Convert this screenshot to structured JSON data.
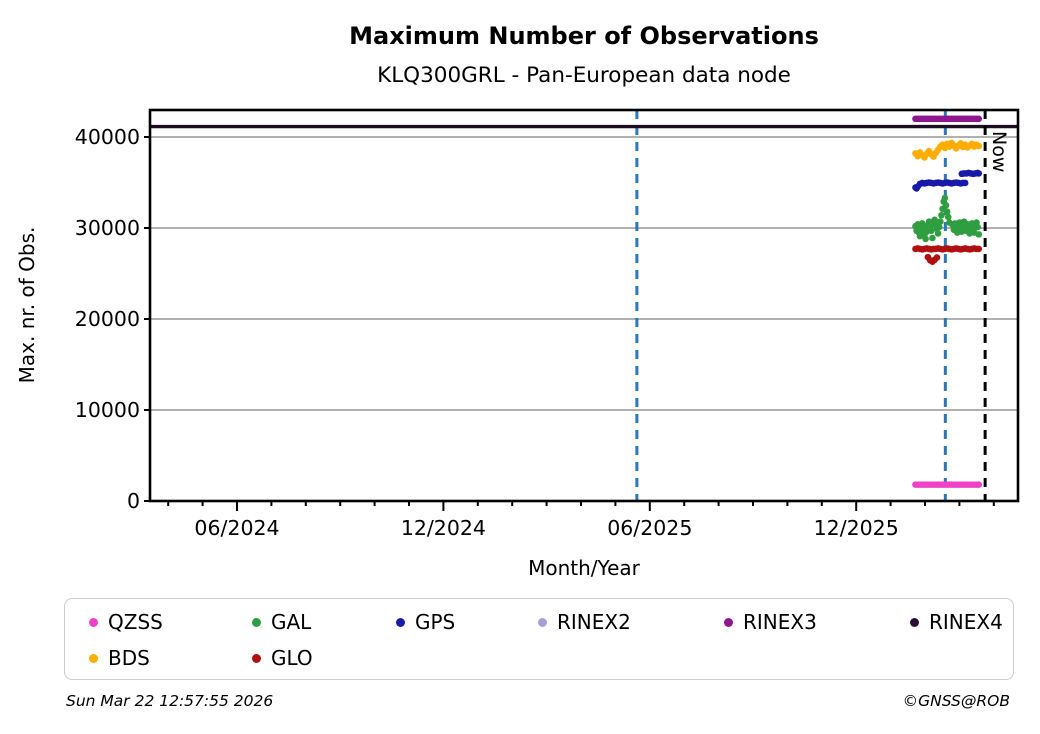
{
  "chart_data": {
    "type": "scatter",
    "title": "Maximum Number of Observations",
    "subtitle": "KLQ300GRL - Pan-European data node",
    "xlabel": "Month/Year",
    "ylabel": "Max. nr. of Obs.",
    "grid": "horizontal",
    "x_axis": {
      "major_tick_labels": [
        "06/2024",
        "12/2024",
        "06/2025",
        "12/2025"
      ],
      "major_tick_month_index": [
        0,
        6,
        12,
        18
      ],
      "minor_tick_month_index_range": [
        -2,
        22
      ],
      "range_dates": [
        "2024-03-16",
        "2026-04-22"
      ]
    },
    "y_axis": {
      "ticks": [
        0,
        10000,
        20000,
        30000,
        40000
      ],
      "range": [
        0,
        42950
      ]
    },
    "annotations": {
      "vlines": [
        {
          "date": "2025-05-20",
          "color": "#2b77b8",
          "style": "dashed"
        },
        {
          "date": "2026-02-19",
          "color": "#2b77b8",
          "style": "dashed"
        }
      ],
      "now_line": {
        "date": "2026-03-22",
        "label": "Now",
        "color": "#000000",
        "style": "dashed"
      },
      "rinex4_hline": {
        "name": "RINEX4",
        "value": 41150,
        "color": "#1c0d22",
        "full_width": true
      }
    },
    "series_epoch": "2026-01-23",
    "series": [
      {
        "name": "RINEX3",
        "color": "#8e168e",
        "points": [
          [
            0,
            42000
          ],
          [
            2,
            42000
          ],
          [
            4,
            42000
          ],
          [
            6,
            42000
          ],
          [
            8,
            42000
          ],
          [
            10,
            42000
          ],
          [
            12,
            42000
          ],
          [
            14,
            42000
          ],
          [
            16,
            42000
          ],
          [
            18,
            42000
          ],
          [
            20,
            42000
          ],
          [
            22,
            42000
          ],
          [
            24,
            42000
          ],
          [
            26,
            42000
          ],
          [
            28,
            42000
          ],
          [
            30,
            42000
          ],
          [
            32,
            42000
          ],
          [
            34,
            42000
          ],
          [
            36,
            42000
          ],
          [
            38,
            42000
          ],
          [
            40,
            42000
          ],
          [
            42,
            42000
          ],
          [
            44,
            42000
          ],
          [
            46,
            42000
          ],
          [
            48,
            42000
          ],
          [
            50,
            42000
          ],
          [
            52,
            42000
          ],
          [
            54,
            42000
          ],
          [
            56,
            42000
          ]
        ]
      },
      {
        "name": "BDS",
        "color": "#ffae00",
        "points": [
          [
            0,
            38200
          ],
          [
            2,
            37900
          ],
          [
            4,
            38300
          ],
          [
            6,
            38000
          ],
          [
            8,
            37750
          ],
          [
            10,
            38150
          ],
          [
            12,
            38450
          ],
          [
            14,
            38100
          ],
          [
            16,
            37850
          ],
          [
            18,
            38250
          ],
          [
            20,
            38600
          ],
          [
            22,
            38950
          ],
          [
            24,
            39150
          ],
          [
            26,
            38800
          ],
          [
            28,
            39250
          ],
          [
            30,
            38950
          ],
          [
            32,
            39350
          ],
          [
            34,
            39050
          ],
          [
            36,
            38750
          ],
          [
            38,
            39050
          ],
          [
            40,
            39300
          ],
          [
            42,
            38900
          ],
          [
            44,
            39150
          ],
          [
            46,
            38850
          ],
          [
            48,
            39050
          ],
          [
            50,
            39250
          ],
          [
            52,
            38950
          ],
          [
            54,
            39150
          ],
          [
            56,
            39000
          ]
        ]
      },
      {
        "name": "GPS",
        "color": "#1a1aa8",
        "points": [
          [
            0,
            34450
          ],
          [
            1,
            34350
          ],
          [
            2,
            34550
          ],
          [
            4,
            34850
          ],
          [
            6,
            34950
          ],
          [
            8,
            34900
          ],
          [
            10,
            34950
          ],
          [
            12,
            35000
          ],
          [
            14,
            34950
          ],
          [
            16,
            34900
          ],
          [
            18,
            34950
          ],
          [
            20,
            35000
          ],
          [
            22,
            34950
          ],
          [
            24,
            34900
          ],
          [
            26,
            34950
          ],
          [
            28,
            35000
          ],
          [
            30,
            34950
          ],
          [
            32,
            34900
          ],
          [
            34,
            34950
          ],
          [
            36,
            35000
          ],
          [
            38,
            34950
          ],
          [
            40,
            34900
          ],
          [
            42,
            34950
          ],
          [
            44,
            34950
          ],
          [
            41,
            35950
          ],
          [
            43,
            36000
          ],
          [
            45,
            36000
          ],
          [
            47,
            36050
          ],
          [
            49,
            36000
          ],
          [
            51,
            35950
          ],
          [
            53,
            36000
          ],
          [
            55,
            36050
          ],
          [
            56,
            36000
          ]
        ]
      },
      {
        "name": "GAL",
        "color": "#2e9e40",
        "points": [
          [
            0,
            30200
          ],
          [
            1,
            29700
          ],
          [
            2,
            30400
          ],
          [
            3,
            29500
          ],
          [
            4,
            29100
          ],
          [
            5,
            29900
          ],
          [
            6,
            30500
          ],
          [
            7,
            30000
          ],
          [
            8,
            29300
          ],
          [
            9,
            28800
          ],
          [
            10,
            29600
          ],
          [
            11,
            30300
          ],
          [
            12,
            30700
          ],
          [
            13,
            30200
          ],
          [
            14,
            29700
          ],
          [
            15,
            28900
          ],
          [
            16,
            30400
          ],
          [
            17,
            30900
          ],
          [
            18,
            30500
          ],
          [
            19,
            29900
          ],
          [
            20,
            29400
          ],
          [
            21,
            30100
          ],
          [
            22,
            30700
          ],
          [
            23,
            31400
          ],
          [
            24,
            32100
          ],
          [
            25,
            32900
          ],
          [
            26,
            33300
          ],
          [
            27,
            32500
          ],
          [
            28,
            31800
          ],
          [
            29,
            31200
          ],
          [
            30,
            30600
          ],
          [
            33,
            30300
          ],
          [
            34,
            29800
          ],
          [
            35,
            30500
          ],
          [
            36,
            30000
          ],
          [
            37,
            29500
          ],
          [
            38,
            30200
          ],
          [
            39,
            30600
          ],
          [
            40,
            30100
          ],
          [
            41,
            29600
          ],
          [
            42,
            30300
          ],
          [
            43,
            30700
          ],
          [
            44,
            30200
          ],
          [
            45,
            29700
          ],
          [
            46,
            30400
          ],
          [
            47,
            29900
          ],
          [
            48,
            29400
          ],
          [
            49,
            30100
          ],
          [
            50,
            30500
          ],
          [
            51,
            30000
          ],
          [
            52,
            29500
          ],
          [
            53,
            30200
          ],
          [
            54,
            30600
          ],
          [
            55,
            30100
          ],
          [
            56,
            29300
          ]
        ]
      },
      {
        "name": "GLO",
        "color": "#b01010",
        "points": [
          [
            0,
            27700
          ],
          [
            2,
            27750
          ],
          [
            4,
            27700
          ],
          [
            6,
            27650
          ],
          [
            8,
            27700
          ],
          [
            10,
            27750
          ],
          [
            12,
            27700
          ],
          [
            14,
            27650
          ],
          [
            16,
            27700
          ],
          [
            18,
            27700
          ],
          [
            20,
            27750
          ],
          [
            22,
            27700
          ],
          [
            24,
            27650
          ],
          [
            26,
            27700
          ],
          [
            28,
            27750
          ],
          [
            30,
            27700
          ],
          [
            32,
            27650
          ],
          [
            34,
            27700
          ],
          [
            36,
            27750
          ],
          [
            38,
            27700
          ],
          [
            40,
            27650
          ],
          [
            42,
            27700
          ],
          [
            44,
            27750
          ],
          [
            46,
            27700
          ],
          [
            48,
            27650
          ],
          [
            50,
            27700
          ],
          [
            52,
            27750
          ],
          [
            54,
            27700
          ],
          [
            56,
            27700
          ],
          [
            11,
            26800
          ],
          [
            13,
            26450
          ],
          [
            15,
            26300
          ],
          [
            17,
            26500
          ],
          [
            19,
            26750
          ]
        ]
      },
      {
        "name": "QZSS",
        "color": "#f042c8",
        "points": [
          [
            0,
            1800
          ],
          [
            2,
            1800
          ],
          [
            4,
            1800
          ],
          [
            6,
            1800
          ],
          [
            8,
            1800
          ],
          [
            10,
            1800
          ],
          [
            12,
            1800
          ],
          [
            14,
            1800
          ],
          [
            16,
            1800
          ],
          [
            18,
            1800
          ],
          [
            20,
            1800
          ],
          [
            22,
            1800
          ],
          [
            24,
            1800
          ],
          [
            26,
            1800
          ],
          [
            28,
            1800
          ],
          [
            30,
            1800
          ],
          [
            32,
            1800
          ],
          [
            34,
            1800
          ],
          [
            36,
            1800
          ],
          [
            38,
            1800
          ],
          [
            40,
            1800
          ],
          [
            42,
            1800
          ],
          [
            44,
            1800
          ],
          [
            46,
            1800
          ],
          [
            48,
            1800
          ],
          [
            50,
            1800
          ],
          [
            52,
            1800
          ],
          [
            54,
            1800
          ],
          [
            56,
            1800
          ]
        ]
      },
      {
        "name": "RINEX2",
        "color": "#a89fd8",
        "points": []
      }
    ],
    "legend": {
      "position": "bottom",
      "entries": [
        {
          "label": "QZSS",
          "color": "#f042c8",
          "row": 0,
          "col": 0
        },
        {
          "label": "GAL",
          "color": "#2e9e40",
          "row": 0,
          "col": 1
        },
        {
          "label": "GPS",
          "color": "#1a1aa8",
          "row": 0,
          "col": 2
        },
        {
          "label": "RINEX2",
          "color": "#a89fd8",
          "row": 0,
          "col": 3
        },
        {
          "label": "RINEX3",
          "color": "#8e168e",
          "row": 0,
          "col": 4
        },
        {
          "label": "RINEX4",
          "color": "#2b0e33",
          "row": 0,
          "col": 5
        },
        {
          "label": "BDS",
          "color": "#ffae00",
          "row": 1,
          "col": 0
        },
        {
          "label": "GLO",
          "color": "#b01010",
          "row": 1,
          "col": 1
        }
      ]
    }
  },
  "footer": {
    "timestamp": "Sun Mar 22 12:57:55 2026",
    "credit": "©GNSS@ROB"
  }
}
